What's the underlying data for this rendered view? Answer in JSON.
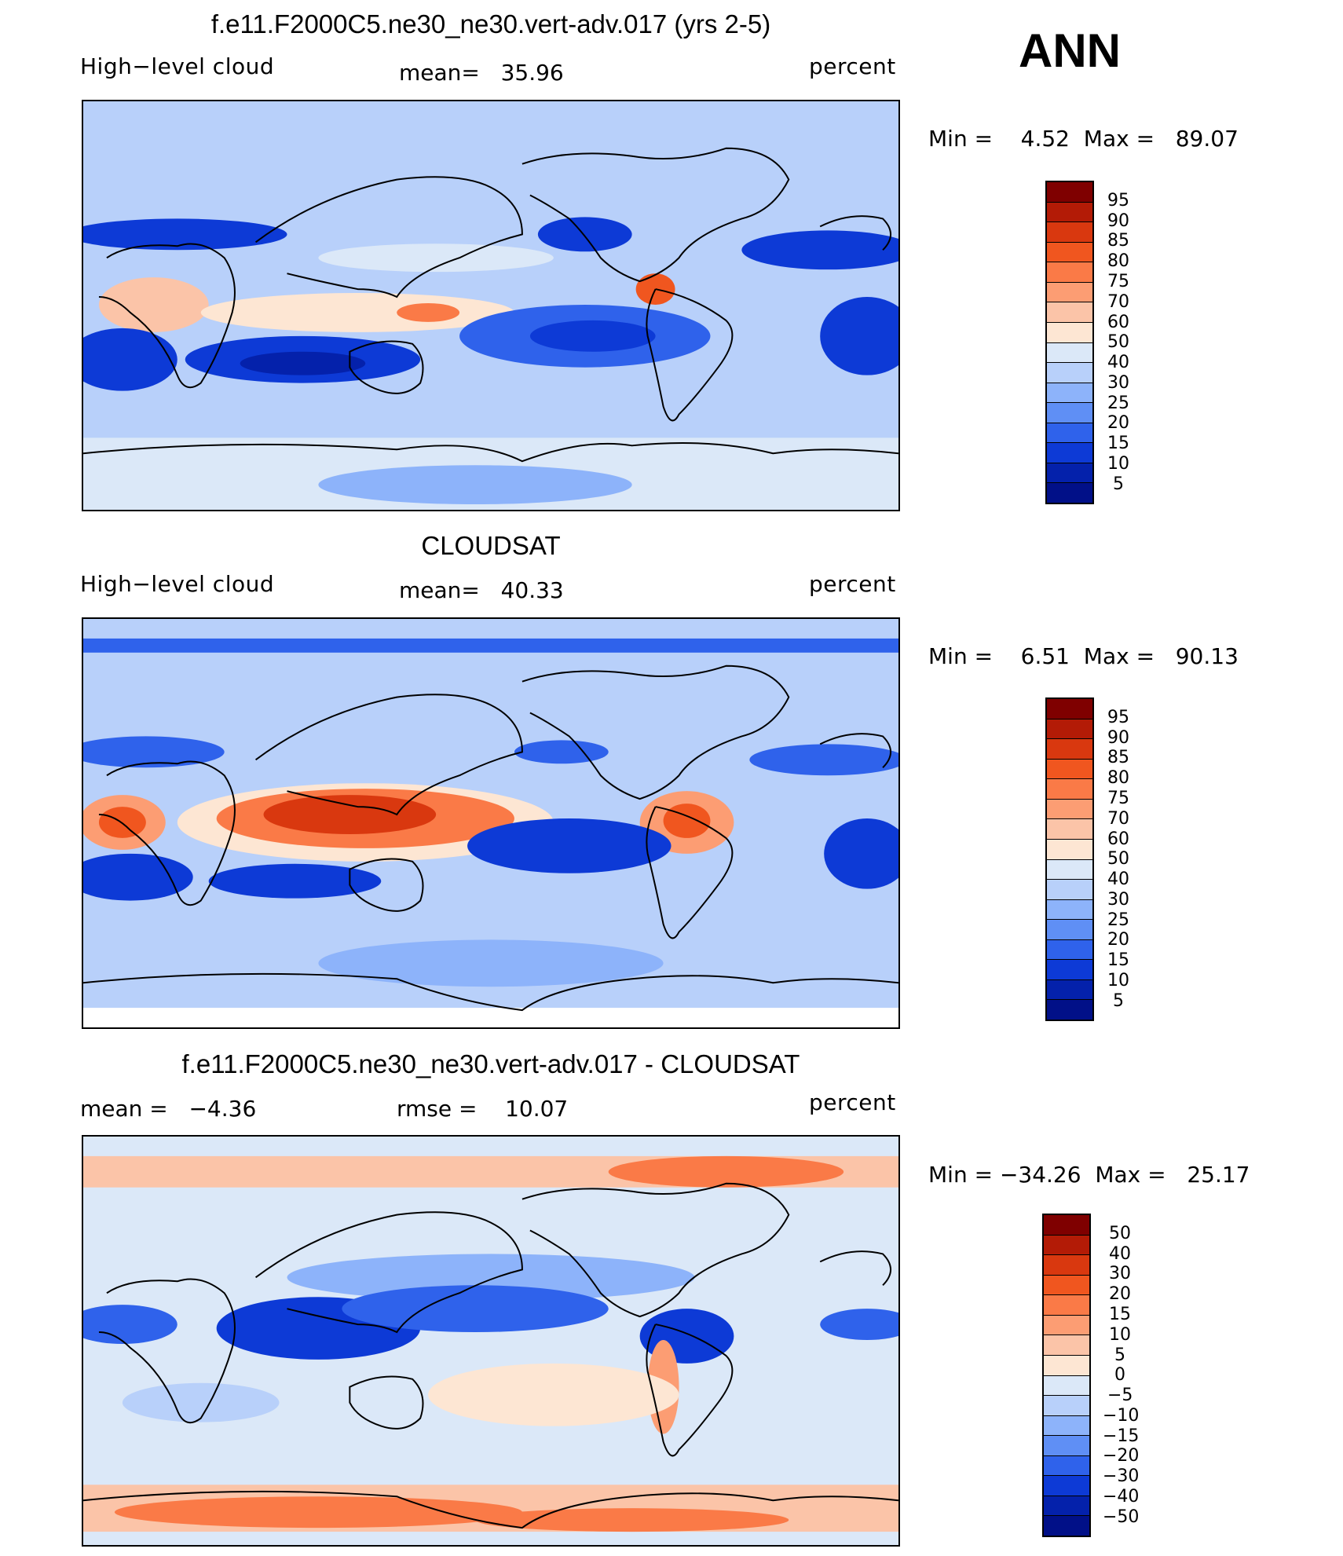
{
  "panels": [
    {
      "title": "f.e11.F2000C5.ne30_ne30.vert-adv.017 (yrs 2-5)",
      "left_label": "High−level cloud",
      "center_label": "mean=   35.96",
      "right_label": "percent",
      "minmax": "Min =    4.52  Max =   89.07",
      "colorbar_labels": [
        "95",
        "90",
        "85",
        "80",
        "75",
        "70",
        "60",
        "50",
        "40",
        "30",
        "25",
        "20",
        "15",
        "10",
        "5"
      ]
    },
    {
      "title": "CLOUDSAT",
      "left_label": "High−level cloud",
      "center_label": "mean=   40.33",
      "right_label": "percent",
      "minmax": "Min =    6.51  Max =   90.13",
      "colorbar_labels": [
        "95",
        "90",
        "85",
        "80",
        "75",
        "70",
        "60",
        "50",
        "40",
        "30",
        "25",
        "20",
        "15",
        "10",
        "5"
      ]
    },
    {
      "title": "f.e11.F2000C5.ne30_ne30.vert-adv.017 - CLOUDSAT",
      "left_label": "mean =   −4.36",
      "center_label": "rmse =    10.07",
      "right_label": "percent",
      "minmax": "Min = −34.26  Max =   25.17",
      "colorbar_labels": [
        "50",
        "40",
        "30",
        "20",
        "15",
        "10",
        "5",
        "0",
        "−5",
        "−10",
        "−15",
        "−20",
        "−30",
        "−40",
        "−50"
      ]
    }
  ],
  "season": "ANN",
  "colors": {
    "scale": [
      "#7f0000",
      "#b31b06",
      "#d9380f",
      "#f0561f",
      "#fa7a47",
      "#fc9d73",
      "#fbc4a8",
      "#fde6d3",
      "#dbe8f8",
      "#b8d0fa",
      "#8db3fa",
      "#5f8ff5",
      "#2f62eb",
      "#0d3ad6",
      "#0421ab",
      "#011088"
    ],
    "land_outline": "#000000"
  },
  "chart_data": [
    {
      "type": "heatmap",
      "title": "f.e11.F2000C5.ne30_ne30.vert-adv.017 (yrs 2-5)",
      "variable": "High-level cloud",
      "units": "percent",
      "mean": 35.96,
      "min": 4.52,
      "max": 89.07,
      "levels": [
        5,
        10,
        15,
        20,
        25,
        30,
        40,
        50,
        60,
        70,
        75,
        80,
        85,
        90,
        95
      ]
    },
    {
      "type": "heatmap",
      "title": "CLOUDSAT",
      "variable": "High-level cloud",
      "units": "percent",
      "mean": 40.33,
      "min": 6.51,
      "max": 90.13,
      "levels": [
        5,
        10,
        15,
        20,
        25,
        30,
        40,
        50,
        60,
        70,
        75,
        80,
        85,
        90,
        95
      ]
    },
    {
      "type": "heatmap",
      "title": "f.e11.F2000C5.ne30_ne30.vert-adv.017 - CLOUDSAT",
      "units": "percent",
      "mean": -4.36,
      "rmse": 10.07,
      "min": -34.26,
      "max": 25.17,
      "levels": [
        -50,
        -40,
        -30,
        -20,
        -15,
        -10,
        -5,
        0,
        5,
        10,
        15,
        20,
        30,
        40,
        50
      ]
    }
  ]
}
